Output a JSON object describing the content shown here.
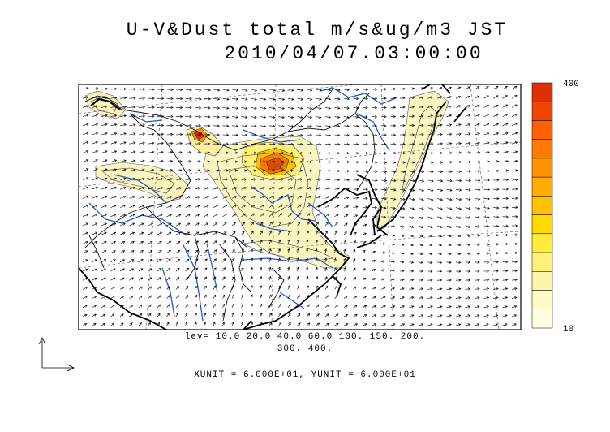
{
  "title": {
    "line1": "U-V&Dust total m/s&ug/m3 JST",
    "line2": "2010/04/07.03:00:00"
  },
  "colorbar": {
    "max_label": "400",
    "min_label": "10",
    "levels": [
      10,
      20,
      40,
      60,
      100,
      150,
      200,
      300,
      400
    ],
    "colors": [
      "#ffffdf",
      "#fffac8",
      "#fff5a8",
      "#fff07a",
      "#ffeb3b",
      "#ffd900",
      "#ffc200",
      "#ffab00",
      "#ff9400",
      "#ff7a00",
      "#ff6000",
      "#f04600",
      "#e03000"
    ]
  },
  "footer": {
    "lev_line1": "lev= 10.0 20.0 40.0 60.0 100. 150. 200.",
    "lev_line2": "300. 400.",
    "units": "XUNIT = 6.000E+01, YUNIT = 6.000E+01"
  },
  "colors": {
    "coast": "#000000",
    "rivers": "#1e5adc",
    "dust_low": "#fbf5c0",
    "dust_high": "#e84a00"
  }
}
